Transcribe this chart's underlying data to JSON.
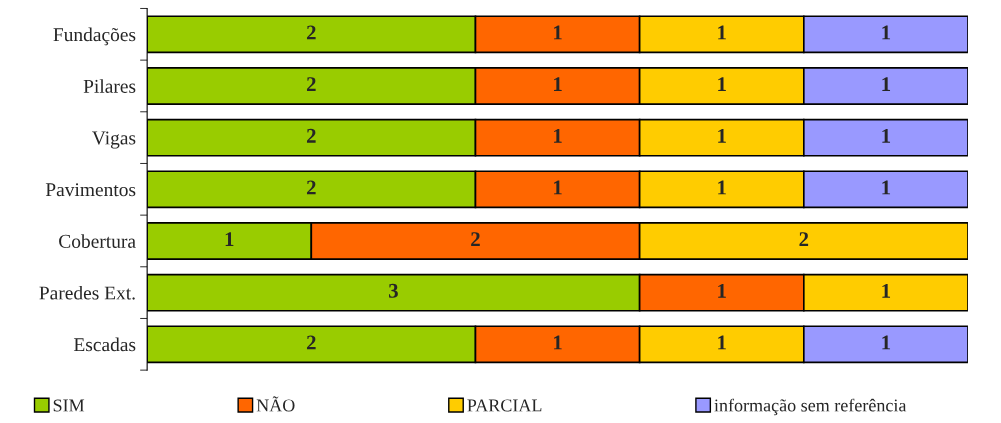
{
  "chart_data": {
    "type": "bar",
    "orientation": "horizontal",
    "stacked": true,
    "data_labels": true,
    "legend": "bottom",
    "categories": [
      "Fundações",
      "Pilares",
      "Vigas",
      "Pavimentos",
      "Cobertura",
      "Paredes Ext.",
      "Escadas"
    ],
    "series": [
      {
        "name": "SIM",
        "color": "#99cc00",
        "values": [
          2,
          2,
          2,
          2,
          1,
          3,
          2
        ]
      },
      {
        "name": "NÃO",
        "color": "#ff6600",
        "values": [
          1,
          1,
          1,
          1,
          2,
          1,
          1
        ]
      },
      {
        "name": "PARCIAL",
        "color": "#ffcc00",
        "values": [
          1,
          1,
          1,
          1,
          2,
          1,
          1
        ]
      },
      {
        "name": "informação sem referência",
        "color": "#9999ff",
        "values": [
          1,
          1,
          1,
          1,
          null,
          null,
          1
        ]
      }
    ]
  }
}
